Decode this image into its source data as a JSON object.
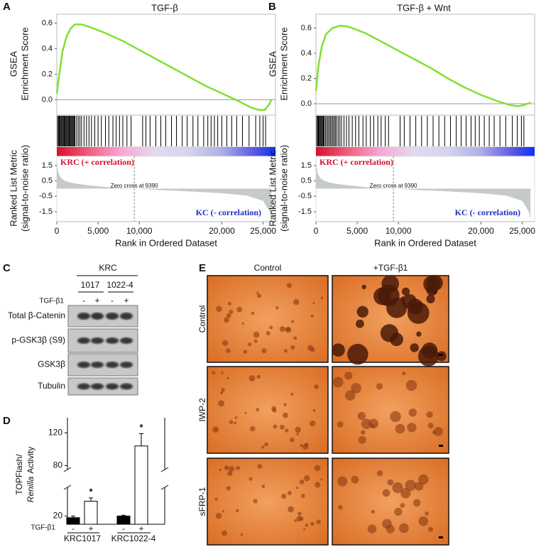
{
  "panel_labels": [
    "A",
    "B",
    "C",
    "D",
    "E"
  ],
  "chart_data": [
    {
      "type": "gsea",
      "title": "TGF-β",
      "ylabel": [
        "GSEA",
        "Enrichment Score"
      ],
      "color": "#80e030",
      "x": [
        0,
        300,
        700,
        1200,
        1700,
        2200,
        3000,
        4000,
        6000,
        8000,
        10000,
        12000,
        14000,
        16000,
        18000,
        20000,
        22000,
        23500,
        24500,
        25200,
        25700,
        26000
      ],
      "values": [
        0.05,
        0.2,
        0.38,
        0.5,
        0.56,
        0.59,
        0.59,
        0.57,
        0.52,
        0.46,
        0.39,
        0.32,
        0.25,
        0.18,
        0.11,
        0.05,
        -0.01,
        -0.06,
        -0.08,
        -0.08,
        -0.04,
        0.0
      ],
      "xlim": [
        0,
        26500
      ],
      "xticks": [
        0,
        {
          "value": 5000,
          "label": "5,000"
        },
        {
          "value": 10000,
          "label": "10,000"
        },
        {
          "value": 20000,
          "label": "20,000"
        },
        {
          "value": 25000,
          "label": "25,000"
        }
      ],
      "ylim": [
        -0.12,
        0.67
      ],
      "yticks": [
        {
          "value": 0,
          "label": "0.0"
        },
        0.2,
        0.4,
        0.6
      ],
      "hits": [
        100,
        200,
        300,
        400,
        500,
        600,
        700,
        800,
        900,
        1000,
        1100,
        1200,
        1300,
        1400,
        1500,
        1600,
        1700,
        1800,
        1900,
        2000,
        2100,
        2200,
        2400,
        2600,
        2800,
        3000,
        3300,
        3600,
        3900,
        4200,
        4600,
        5000,
        5400,
        5900,
        6300,
        6800,
        7200,
        7600,
        8000,
        8500,
        9000,
        10400,
        10800,
        11300,
        12000,
        12600,
        13200,
        13900,
        14500,
        15200,
        15800,
        16500,
        17100,
        17800,
        18300,
        18700,
        19100,
        19500,
        20000,
        20600,
        21200,
        21800,
        22500,
        23300,
        24100,
        24600,
        25000,
        25300
      ],
      "metric": {
        "ylabel": [
          "Ranked List Metric",
          "(signal-to-noise ratio)"
        ],
        "color": "#c5cbc9",
        "x": [
          0,
          200,
          500,
          1000,
          2000,
          4000,
          6000,
          9390,
          12000,
          16000,
          20000,
          23000,
          25000,
          25800,
          26000
        ],
        "values": [
          1.8,
          1.0,
          0.7,
          0.5,
          0.35,
          0.2,
          0.1,
          0,
          -0.08,
          -0.18,
          -0.3,
          -0.45,
          -0.8,
          -1.5,
          -2.0
        ],
        "ylim": [
          -2.15,
          2.1
        ],
        "yticks": [
          -1.5,
          -0.5,
          0.5,
          1.5
        ]
      },
      "zero_cross": {
        "value": 9390,
        "label": "Zero cross at 9390"
      },
      "annotations": [
        "KRC (+ correlation)",
        "KC (- correlation)"
      ],
      "xlabel": "Rank in Ordered Dataset"
    },
    {
      "type": "gsea",
      "title": "TGF-β + Wnt",
      "ylabel": [
        "GSEA",
        "Enrichment Score"
      ],
      "color": "#80e030",
      "x": [
        0,
        300,
        700,
        1200,
        2000,
        3000,
        4000,
        6000,
        8000,
        10000,
        12000,
        14000,
        16000,
        18000,
        20000,
        22000,
        23500,
        24500,
        25200,
        26000
      ],
      "values": [
        0.1,
        0.3,
        0.45,
        0.55,
        0.6,
        0.62,
        0.61,
        0.56,
        0.49,
        0.42,
        0.35,
        0.28,
        0.2,
        0.13,
        0.07,
        0.02,
        -0.01,
        -0.02,
        -0.01,
        0.01
      ],
      "xlim": [
        0,
        26500
      ],
      "xticks": [
        0,
        {
          "value": 5000,
          "label": "5,000"
        },
        {
          "value": 10000,
          "label": "10,000"
        },
        {
          "value": 20000,
          "label": "20,000"
        },
        {
          "value": 25000,
          "label": "25,000"
        }
      ],
      "ylim": [
        -0.09,
        0.71
      ],
      "yticks": [
        {
          "value": 0,
          "label": "0.0"
        },
        0.2,
        0.4,
        0.6
      ],
      "hits": [
        100,
        200,
        300,
        400,
        500,
        600,
        700,
        800,
        900,
        1000,
        1150,
        1300,
        1450,
        1600,
        1750,
        1900,
        2050,
        2200,
        2350,
        2500,
        2700,
        2900,
        3100,
        3400,
        3700,
        4000,
        4400,
        4800,
        5200,
        5700,
        6100,
        6600,
        7000,
        7500,
        7900,
        8400,
        8800,
        10200,
        10700,
        11400,
        12100,
        12800,
        13500,
        14200,
        14900,
        15600,
        16300,
        17000,
        17600,
        18200,
        18800,
        19300,
        19800,
        20400,
        21000,
        21600,
        22300,
        23000,
        23800,
        24400,
        24900,
        25200
      ],
      "metric": {
        "ylabel": [
          "Ranked List Metric",
          "(signal-to-noise ratio)"
        ],
        "color": "#c5cbc9",
        "x": [
          0,
          200,
          500,
          1000,
          2000,
          4000,
          6000,
          9390,
          12000,
          16000,
          20000,
          23000,
          25000,
          25800,
          26000
        ],
        "values": [
          1.8,
          1.0,
          0.7,
          0.5,
          0.35,
          0.2,
          0.1,
          0,
          -0.08,
          -0.18,
          -0.3,
          -0.45,
          -0.8,
          -1.5,
          -2.0
        ],
        "ylim": [
          -2.15,
          2.1
        ],
        "yticks": [
          -1.5,
          -0.5,
          0.5,
          1.5
        ]
      },
      "zero_cross": {
        "value": 9390,
        "label": "Zero cross at 9390"
      },
      "annotations": [
        "KRC (+ correlation)",
        "KC (- correlation)"
      ],
      "xlabel": "Rank in Ordered Dataset"
    },
    {
      "type": "bar",
      "ylabel": [
        "TOPFlash/",
        "Renilla",
        "Activity"
      ],
      "factor_label": "TGF-β1",
      "categories": [
        "-",
        "+",
        "-",
        "+"
      ],
      "groups": [
        "KRC1017",
        "KRC1022-4"
      ],
      "values": [
        19,
        29,
        20,
        104
      ],
      "errors": [
        1,
        2,
        0.5,
        15
      ],
      "colors": [
        "#000000",
        "#ffffff",
        "#000000",
        "#ffffff"
      ],
      "ylim_segments": [
        [
          15,
          40
        ],
        [
          70,
          135
        ]
      ],
      "yticks": [
        20,
        80,
        120
      ],
      "significant": [
        false,
        true,
        false,
        true
      ],
      "significance_label": "*"
    }
  ],
  "blot": {
    "group": "KRC",
    "lanes": [
      "1017",
      "1022-4"
    ],
    "treatment": "TGF-β1",
    "signs": [
      "-",
      "+",
      "-",
      "+"
    ],
    "rows": [
      "Total β-Catenin",
      "p-GSK3β (S9)",
      "GSK3β",
      "Tubulin"
    ]
  },
  "images": {
    "columns": [
      "Control",
      "+TGF-β1"
    ],
    "rows": [
      "Control",
      "IWP-2",
      "sFRP-1"
    ]
  }
}
